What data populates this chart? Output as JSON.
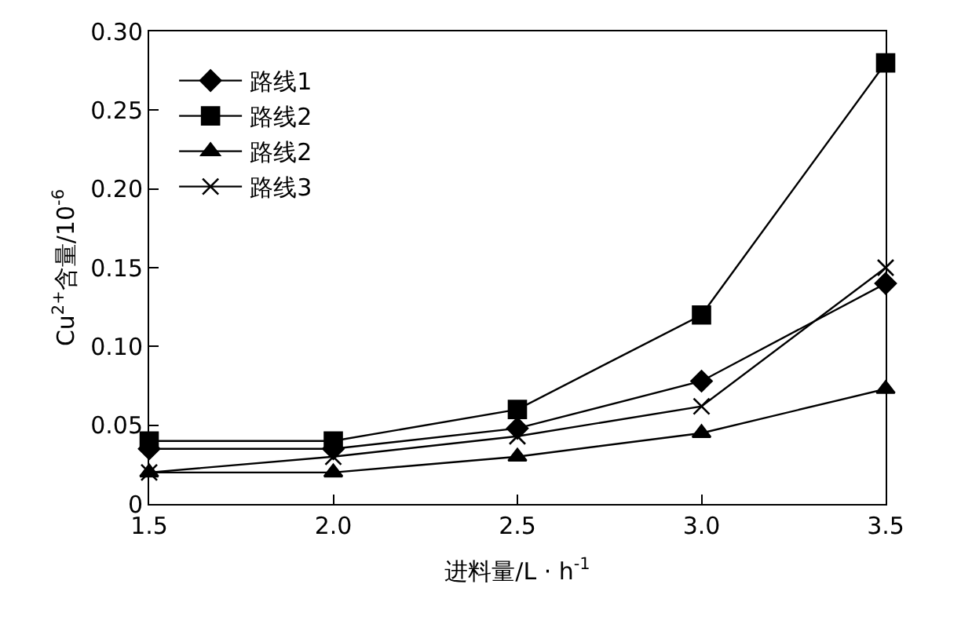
{
  "chart_data": {
    "type": "line",
    "xlabel": "进料量/L · h$^{-1}$",
    "ylabel": "Cu$^{2+}$含量/10$^{-6}$",
    "x": [
      1.5,
      2.0,
      2.5,
      3.0,
      3.5
    ],
    "series": [
      {
        "name": "路线1",
        "color": "#000000",
        "marker": "diamond",
        "values": [
          0.035,
          0.035,
          0.048,
          0.078,
          0.14
        ]
      },
      {
        "name": "路线2",
        "color": "#000000",
        "marker": "square",
        "values": [
          0.04,
          0.04,
          0.06,
          0.12,
          0.28
        ]
      },
      {
        "name": "路线2",
        "color": "#000000",
        "marker": "triangle",
        "values": [
          0.02,
          0.02,
          0.03,
          0.045,
          0.073
        ]
      },
      {
        "name": "路线3",
        "color": "#000000",
        "marker": "cross",
        "values": [
          0.02,
          0.03,
          0.043,
          0.062,
          0.15
        ]
      }
    ],
    "xlim": [
      1.5,
      3.5
    ],
    "xticks": [
      {
        "value": 1.5,
        "label": "1.5"
      },
      {
        "value": 2.0,
        "label": "2.0"
      },
      {
        "value": 2.5,
        "label": "2.5"
      },
      {
        "value": 3.0,
        "label": "3.0"
      },
      {
        "value": 3.5,
        "label": "3.5"
      }
    ],
    "ylim": [
      0,
      0.3
    ],
    "yticks": [
      0,
      {
        "value": 0.05,
        "label": "0.05"
      },
      {
        "value": 0.1,
        "label": "0.10"
      },
      {
        "value": 0.15,
        "label": "0.15"
      },
      {
        "value": 0.2,
        "label": "0.20"
      },
      {
        "value": 0.25,
        "label": "0.25"
      },
      {
        "value": 0.3,
        "label": "0.30"
      }
    ],
    "legend": "top left",
    "line_style": "solid"
  }
}
